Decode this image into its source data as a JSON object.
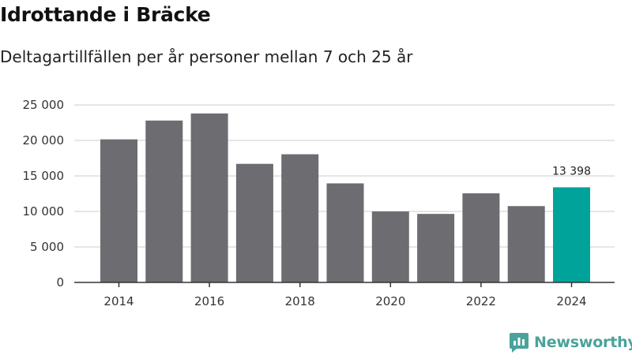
{
  "title": "Idrottande i Bräcke",
  "subtitle": "Deltagartillfällen per år personer mellan 7 och 25 år",
  "brand": {
    "name": "Newsworthy",
    "icon": "newsworthy-logo-icon"
  },
  "colors": {
    "bar": "#6d6c71",
    "highlight": "#00a39a",
    "grid": "#dddddd",
    "axis": "#333333"
  },
  "chart_data": {
    "type": "bar",
    "categories": [
      "2014",
      "2015",
      "2016",
      "2017",
      "2018",
      "2019",
      "2020",
      "2021",
      "2022",
      "2023",
      "2024"
    ],
    "values": [
      20150,
      22800,
      23800,
      16700,
      18050,
      13950,
      10000,
      9650,
      12550,
      10750,
      13398
    ],
    "x_tick_labels": [
      "2014",
      "2016",
      "2018",
      "2020",
      "2022",
      "2024"
    ],
    "y_ticks": [
      0,
      5000,
      10000,
      15000,
      20000,
      25000
    ],
    "y_tick_labels": [
      "0",
      "5 000",
      "10 000",
      "15 000",
      "20 000",
      "25 000"
    ],
    "ylim": [
      0,
      25000
    ],
    "highlight_index": 10,
    "data_label": "13 398",
    "grid": true,
    "legend": false
  }
}
